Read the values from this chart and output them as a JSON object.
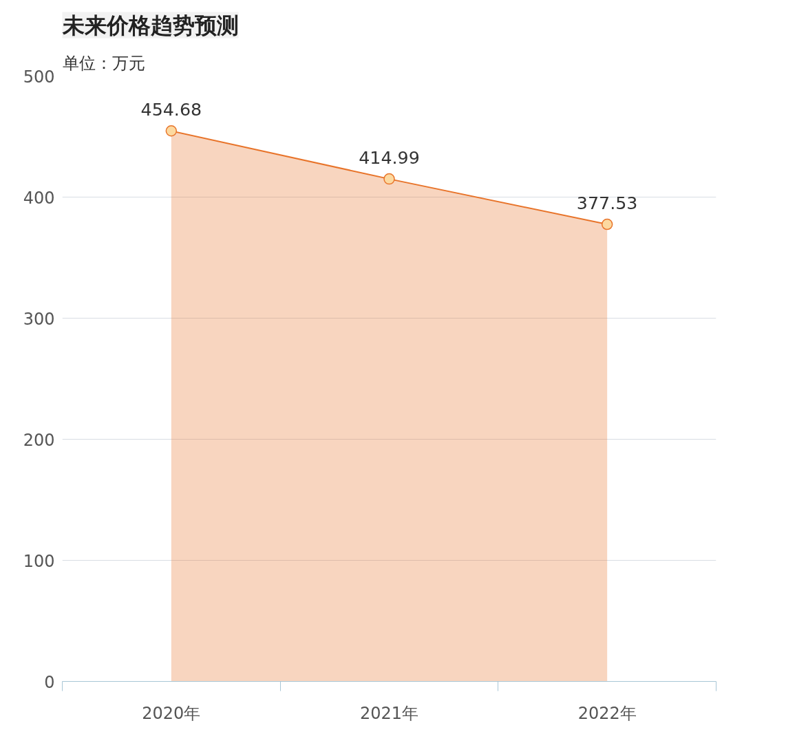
{
  "chart_data": {
    "type": "area",
    "title": "未来价格趋势预测",
    "ylabel": "单位：万元",
    "categories": [
      "2020年",
      "2021年",
      "2022年"
    ],
    "series": [
      {
        "color": "#e8742a",
        "values": [
          454.68,
          414.99,
          377.53
        ]
      }
    ],
    "ylim": [
      0,
      500
    ],
    "yticks": [
      0,
      100,
      200,
      300,
      400,
      500
    ],
    "grid": "y",
    "marker": "circle",
    "data_labels": true
  }
}
